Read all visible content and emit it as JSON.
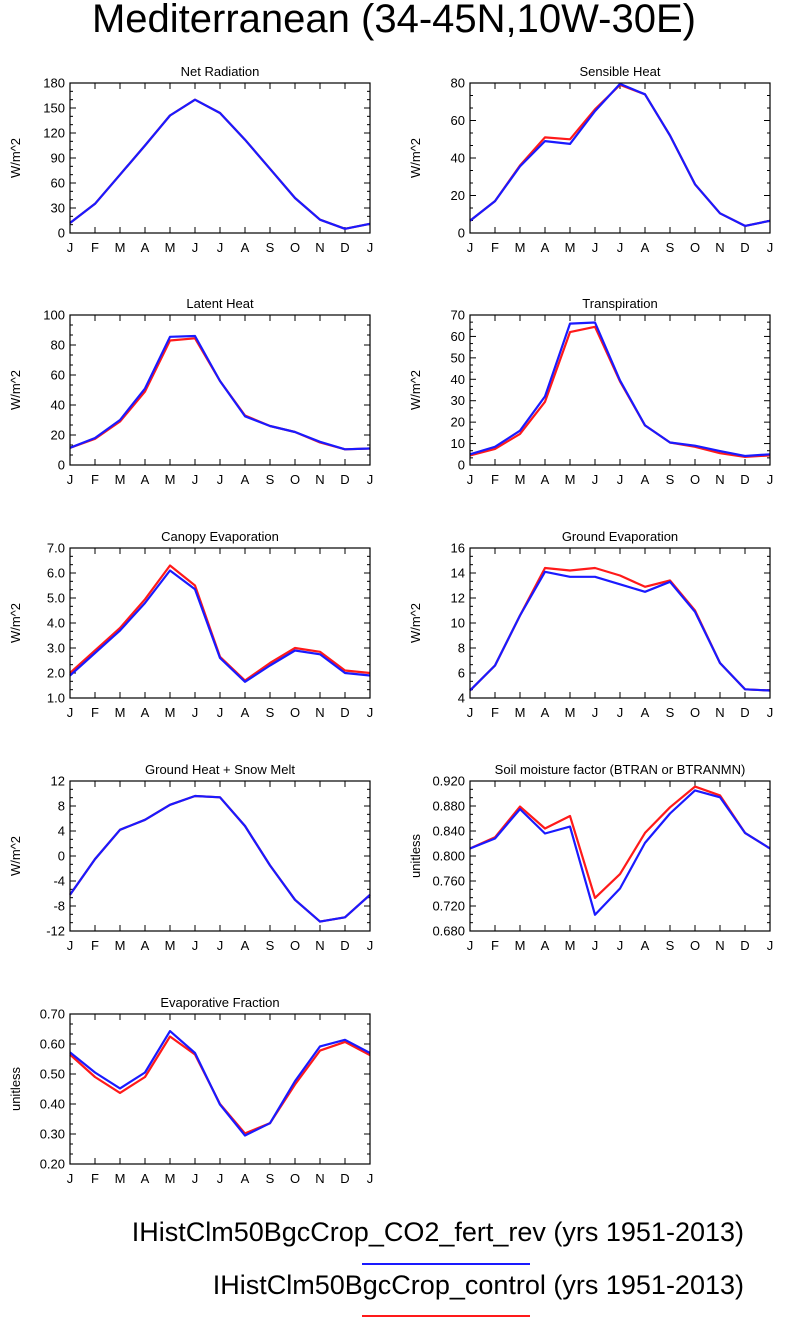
{
  "page": {
    "title": "Mediterranean (34-45N,10W-30E)"
  },
  "colors": {
    "fert": "#1a1aff",
    "control": "#ff1a1a"
  },
  "legend": [
    {
      "label": "IHistClm50BgcCrop_CO2_fert_rev (yrs 1951-2013)",
      "color": "#1a1aff"
    },
    {
      "label": "IHistClm50BgcCrop_control (yrs 1951-2013)",
      "color": "#ff1a1a"
    }
  ],
  "chart_data": [
    {
      "type": "line",
      "title": "Net Radiation",
      "ylabel": "W/m^2",
      "categories": [
        "J",
        "F",
        "M",
        "A",
        "M",
        "J",
        "J",
        "A",
        "S",
        "O",
        "N",
        "D",
        "J"
      ],
      "ylim": [
        0,
        180
      ],
      "yticks": [
        "0",
        "30",
        "60",
        "90",
        "120",
        "150",
        "180"
      ],
      "series": [
        {
          "values": [
            12,
            35,
            70,
            105,
            141,
            160,
            144,
            112,
            77,
            42,
            16,
            5,
            11
          ]
        },
        {
          "values": [
            12,
            35,
            70,
            105,
            141,
            160,
            144,
            112,
            77,
            42,
            16,
            5,
            11
          ]
        }
      ]
    },
    {
      "type": "line",
      "title": "Sensible Heat",
      "ylabel": "W/m^2",
      "categories": [
        "J",
        "F",
        "M",
        "A",
        "M",
        "J",
        "J",
        "A",
        "S",
        "O",
        "N",
        "D",
        "J"
      ],
      "ylim": [
        0,
        80
      ],
      "yticks": [
        "0",
        "20",
        "40",
        "60",
        "80"
      ],
      "series": [
        {
          "values": [
            6.5,
            17,
            36,
            51,
            50,
            66,
            79,
            74,
            52,
            26,
            10.5,
            3.8,
            6.5
          ]
        },
        {
          "values": [
            6.5,
            17,
            35.5,
            49,
            47.5,
            65,
            79.5,
            74,
            52,
            26,
            10.5,
            3.8,
            6.5
          ]
        }
      ]
    },
    {
      "type": "line",
      "title": "Latent Heat",
      "ylabel": "W/m^2",
      "categories": [
        "J",
        "F",
        "M",
        "A",
        "M",
        "J",
        "J",
        "A",
        "S",
        "O",
        "N",
        "D",
        "J"
      ],
      "ylim": [
        0,
        100
      ],
      "yticks": [
        "0",
        "20",
        "40",
        "60",
        "80",
        "100"
      ],
      "series": [
        {
          "values": [
            11.5,
            17.5,
            29,
            49,
            83,
            84.5,
            56,
            33,
            26,
            22,
            15,
            10.5,
            11
          ]
        },
        {
          "values": [
            11.5,
            18,
            30,
            51,
            85.5,
            86,
            56,
            32.5,
            26,
            22,
            15.5,
            10.5,
            11
          ]
        }
      ]
    },
    {
      "type": "line",
      "title": "Transpiration",
      "ylabel": "W/m^2",
      "categories": [
        "J",
        "F",
        "M",
        "A",
        "M",
        "J",
        "J",
        "A",
        "S",
        "O",
        "N",
        "D",
        "J"
      ],
      "ylim": [
        0,
        70
      ],
      "yticks": [
        "0",
        "10",
        "20",
        "30",
        "40",
        "50",
        "60",
        "70"
      ],
      "series": [
        {
          "values": [
            4.5,
            7.5,
            14.5,
            29.5,
            62,
            64.5,
            39,
            18.5,
            10.5,
            8.5,
            5.5,
            3.8,
            4.5
          ]
        },
        {
          "values": [
            5,
            8.5,
            16,
            32,
            66,
            66.5,
            39.5,
            18.5,
            10.5,
            9,
            6.5,
            4.2,
            5
          ]
        }
      ]
    },
    {
      "type": "line",
      "title": "Canopy Evaporation",
      "ylabel": "W/m^2",
      "categories": [
        "J",
        "F",
        "M",
        "A",
        "M",
        "J",
        "J",
        "A",
        "S",
        "O",
        "N",
        "D",
        "J"
      ],
      "ylim": [
        1.0,
        7.0
      ],
      "yticks": [
        "1.0",
        "2.0",
        "3.0",
        "4.0",
        "5.0",
        "6.0",
        "7.0"
      ],
      "series": [
        {
          "values": [
            2.0,
            2.9,
            3.8,
            4.95,
            6.3,
            5.5,
            2.65,
            1.7,
            2.4,
            3.0,
            2.85,
            2.1,
            2.0
          ]
        },
        {
          "values": [
            1.9,
            2.8,
            3.7,
            4.8,
            6.1,
            5.35,
            2.6,
            1.65,
            2.3,
            2.9,
            2.75,
            2.0,
            1.9
          ]
        }
      ]
    },
    {
      "type": "line",
      "title": "Ground Evaporation",
      "ylabel": "W/m^2",
      "categories": [
        "J",
        "F",
        "M",
        "A",
        "M",
        "J",
        "J",
        "A",
        "S",
        "O",
        "N",
        "D",
        "J"
      ],
      "ylim": [
        4,
        16
      ],
      "yticks": [
        "4",
        "6",
        "8",
        "10",
        "12",
        "14",
        "16"
      ],
      "series": [
        {
          "values": [
            4.6,
            6.6,
            10.6,
            14.4,
            14.2,
            14.4,
            13.8,
            12.9,
            13.4,
            11.0,
            6.8,
            4.7,
            4.6
          ]
        },
        {
          "values": [
            4.6,
            6.6,
            10.6,
            14.1,
            13.7,
            13.7,
            13.1,
            12.5,
            13.3,
            10.9,
            6.8,
            4.7,
            4.6
          ]
        }
      ]
    },
    {
      "type": "line",
      "title": "Ground Heat + Snow Melt",
      "ylabel": "W/m^2",
      "categories": [
        "J",
        "F",
        "M",
        "A",
        "M",
        "J",
        "J",
        "A",
        "S",
        "O",
        "N",
        "D",
        "J"
      ],
      "ylim": [
        -12,
        12
      ],
      "yticks": [
        "-12",
        "-8",
        "-4",
        "0",
        "4",
        "8",
        "12"
      ],
      "series": [
        {
          "values": [
            -6.2,
            -0.5,
            4.2,
            5.8,
            8.2,
            9.6,
            9.4,
            4.8,
            -1.5,
            -7.0,
            -10.5,
            -9.8,
            -6.2
          ]
        },
        {
          "values": [
            -6.2,
            -0.5,
            4.2,
            5.8,
            8.2,
            9.6,
            9.4,
            4.8,
            -1.5,
            -7.0,
            -10.5,
            -9.8,
            -6.2
          ]
        }
      ]
    },
    {
      "type": "line",
      "title": "Soil moisture factor (BTRAN or BTRANMN)",
      "ylabel": "unitless",
      "categories": [
        "J",
        "F",
        "M",
        "A",
        "M",
        "J",
        "J",
        "A",
        "S",
        "O",
        "N",
        "D",
        "J"
      ],
      "ylim": [
        0.68,
        0.92
      ],
      "yticks": [
        "0.680",
        "0.720",
        "0.760",
        "0.800",
        "0.840",
        "0.880",
        "0.920"
      ],
      "series": [
        {
          "values": [
            0.812,
            0.83,
            0.879,
            0.844,
            0.864,
            0.733,
            0.771,
            0.837,
            0.878,
            0.911,
            0.897,
            0.837,
            0.812
          ]
        },
        {
          "values": [
            0.812,
            0.828,
            0.875,
            0.836,
            0.847,
            0.706,
            0.748,
            0.821,
            0.868,
            0.905,
            0.894,
            0.837,
            0.812
          ]
        }
      ]
    },
    {
      "type": "line",
      "title": "Evaporative Fraction",
      "ylabel": "unitless",
      "categories": [
        "J",
        "F",
        "M",
        "A",
        "M",
        "J",
        "J",
        "A",
        "S",
        "O",
        "N",
        "D",
        "J"
      ],
      "ylim": [
        0.2,
        0.7
      ],
      "yticks": [
        "0.20",
        "0.30",
        "0.40",
        "0.50",
        "0.60",
        "0.70"
      ],
      "series": [
        {
          "values": [
            0.565,
            0.49,
            0.437,
            0.49,
            0.625,
            0.565,
            0.4,
            0.302,
            0.336,
            0.465,
            0.578,
            0.607,
            0.563
          ]
        },
        {
          "values": [
            0.572,
            0.505,
            0.452,
            0.505,
            0.643,
            0.57,
            0.398,
            0.295,
            0.336,
            0.476,
            0.592,
            0.614,
            0.57
          ]
        }
      ]
    }
  ]
}
